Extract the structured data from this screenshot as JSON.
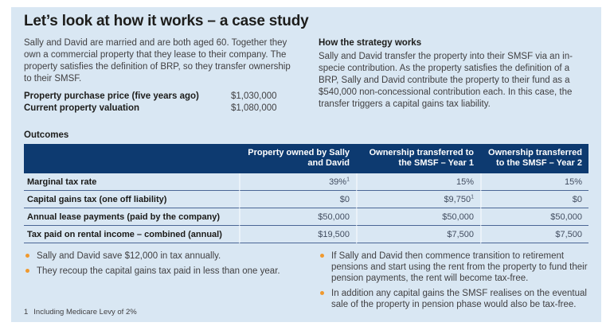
{
  "colors": {
    "panel_bg": "#d9e7f3",
    "header_navy": "#0d3a70",
    "accent_orange": "#f0992e"
  },
  "title": "Let’s look at how it works – a case study",
  "case_intro": {
    "paragraph": "Sally and David are married and are both aged 60. Together they own a commercial property that they lease to their company. The property satisfies the definition of BRP, so they transfer ownership to their SMSF.",
    "facts": [
      {
        "label": "Property purchase price (five years ago)",
        "value": "$1,030,000"
      },
      {
        "label": "Current property valuation",
        "value": "$1,080,000"
      }
    ]
  },
  "strategy": {
    "heading": "How the strategy works",
    "paragraph": "Sally and David transfer the property into their SMSF via an in-specie contribution. As the property satisfies the definition of a BRP, Sally and David contribute the property to their fund as a $540,000 non-concessional contribution each. In this case, the transfer triggers a capital gains tax liability."
  },
  "outcomes": {
    "heading": "Outcomes",
    "columns": [
      "Property owned by Sally and David",
      "Ownership transferred to the SMSF – Year 1",
      "Ownership transferred to the SMSF – Year 2"
    ],
    "rows": [
      {
        "label": "Marginal tax rate",
        "values": [
          {
            "text": "39%",
            "sup": "1"
          },
          {
            "text": "15%",
            "sup": ""
          },
          {
            "text": "15%",
            "sup": ""
          }
        ]
      },
      {
        "label": "Capital gains tax (one off liability)",
        "values": [
          {
            "text": "$0",
            "sup": ""
          },
          {
            "text": "$9,750",
            "sup": "1"
          },
          {
            "text": "$0",
            "sup": ""
          }
        ]
      },
      {
        "label": "Annual lease payments (paid by the company)",
        "values": [
          {
            "text": "$50,000",
            "sup": ""
          },
          {
            "text": "$50,000",
            "sup": ""
          },
          {
            "text": "$50,000",
            "sup": ""
          }
        ]
      },
      {
        "label": "Tax paid on rental income – combined (annual)",
        "values": [
          {
            "text": "$19,500",
            "sup": ""
          },
          {
            "text": "$7,500",
            "sup": ""
          },
          {
            "text": "$7,500",
            "sup": ""
          }
        ]
      }
    ]
  },
  "takeaways_left": [
    "Sally and David save $12,000 in tax annually.",
    "They recoup the capital gains tax paid in less than one year."
  ],
  "takeaways_right": [
    "If Sally and David then commence transition to retirement pensions and start using the rent from the property to fund their pension payments, the rent will become tax-free.",
    "In addition any capital gains the SMSF realises on the eventual sale of the property in pension phase would also be tax-free."
  ],
  "footnote": {
    "marker": "1",
    "text": "Including Medicare Levy of 2%"
  }
}
